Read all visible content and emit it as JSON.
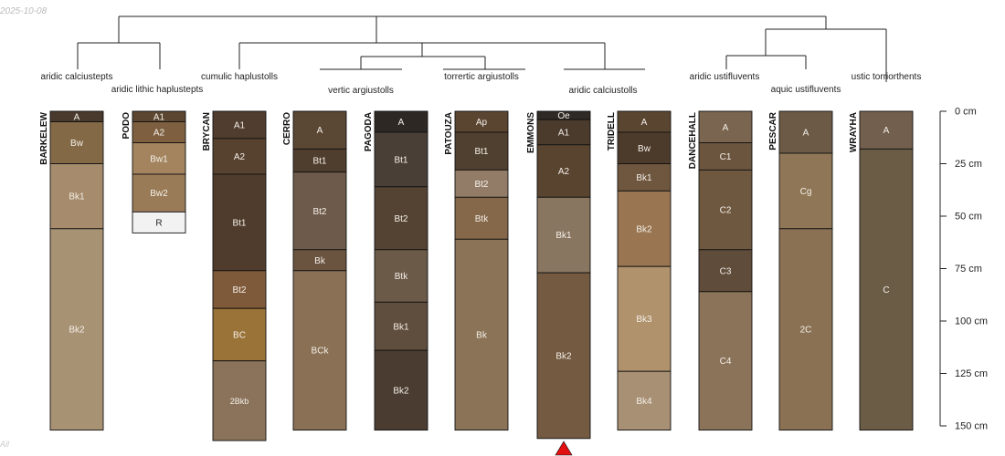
{
  "date_stamp": "2025-10-08",
  "corner_label": "All",
  "depth_axis": {
    "unit": "cm",
    "max_depth": 150,
    "ticks": [
      {
        "depth": 0,
        "label": "0 cm"
      },
      {
        "depth": 25,
        "label": "25 cm"
      },
      {
        "depth": 50,
        "label": "50 cm"
      },
      {
        "depth": 75,
        "label": "75 cm"
      },
      {
        "depth": 100,
        "label": "100 cm"
      },
      {
        "depth": 125,
        "label": "125 cm"
      },
      {
        "depth": 150,
        "label": "150 cm"
      }
    ]
  },
  "taxa_labels": [
    "aridic calciustepts",
    "aridic lithic haplustepts",
    "cumulic haplustolls",
    "vertic argiustolls",
    "torrertic argiustolls",
    "aridic calciustolls",
    "aridic ustifluvents",
    "aquic ustifluvents",
    "ustic torriorthents"
  ],
  "profiles": [
    {
      "name": "BARKELEW",
      "horizons": [
        {
          "name": "A",
          "top": 0,
          "bottom": 5,
          "color": "#4a3a2e"
        },
        {
          "name": "Bw",
          "top": 5,
          "bottom": 25,
          "color": "#846947"
        },
        {
          "name": "Bk1",
          "top": 25,
          "bottom": 56,
          "color": "#a68c6d"
        },
        {
          "name": "Bk2",
          "top": 56,
          "bottom": 152,
          "color": "#a89274"
        }
      ]
    },
    {
      "name": "PODO",
      "horizons": [
        {
          "name": "A1",
          "top": 0,
          "bottom": 5,
          "color": "#5c4631"
        },
        {
          "name": "A2",
          "top": 5,
          "bottom": 15,
          "color": "#7e6041"
        },
        {
          "name": "Bw1",
          "top": 15,
          "bottom": 30,
          "color": "#a3845e"
        },
        {
          "name": "Bw2",
          "top": 30,
          "bottom": 48,
          "color": "#9a7b58"
        },
        {
          "name": "R",
          "top": 48,
          "bottom": 58,
          "color": "#f2f2f2"
        }
      ]
    },
    {
      "name": "BRYCAN",
      "horizons": [
        {
          "name": "A1",
          "top": 0,
          "bottom": 13,
          "color": "#503d2f"
        },
        {
          "name": "A2",
          "top": 13,
          "bottom": 30,
          "color": "#57422f"
        },
        {
          "name": "Bt1",
          "top": 30,
          "bottom": 76,
          "color": "#4f3c2d"
        },
        {
          "name": "Bt2",
          "top": 76,
          "bottom": 94,
          "color": "#7f5a3a"
        },
        {
          "name": "BC",
          "top": 94,
          "bottom": 119,
          "color": "#9a7338"
        },
        {
          "name": "2Bkb",
          "top": 119,
          "bottom": 157,
          "color": "#8a735a"
        }
      ]
    },
    {
      "name": "CERRO",
      "horizons": [
        {
          "name": "A",
          "top": 0,
          "bottom": 18,
          "color": "#5a4734"
        },
        {
          "name": "Bt1",
          "top": 18,
          "bottom": 29,
          "color": "#4f3d2e"
        },
        {
          "name": "Bt2",
          "top": 29,
          "bottom": 66,
          "color": "#6e5a4a"
        },
        {
          "name": "Bk",
          "top": 66,
          "bottom": 76,
          "color": "#6a5440"
        },
        {
          "name": "BCk",
          "top": 76,
          "bottom": 152,
          "color": "#8a7156"
        }
      ]
    },
    {
      "name": "PAGODA",
      "horizons": [
        {
          "name": "A",
          "top": 0,
          "bottom": 10,
          "color": "#2e2824"
        },
        {
          "name": "Bt1",
          "top": 10,
          "bottom": 36,
          "color": "#4a3f36"
        },
        {
          "name": "Bt2",
          "top": 36,
          "bottom": 66,
          "color": "#544333"
        },
        {
          "name": "Btk",
          "top": 66,
          "bottom": 91,
          "color": "#6b5a48"
        },
        {
          "name": "Bk1",
          "top": 91,
          "bottom": 114,
          "color": "#5f4d3d"
        },
        {
          "name": "Bk2",
          "top": 114,
          "bottom": 152,
          "color": "#4a3c30"
        }
      ]
    },
    {
      "name": "PATOUZA",
      "horizons": [
        {
          "name": "Ap",
          "top": 0,
          "bottom": 10,
          "color": "#5a4531"
        },
        {
          "name": "Bt1",
          "top": 10,
          "bottom": 28,
          "color": "#50402f"
        },
        {
          "name": "Bt2",
          "top": 28,
          "bottom": 41,
          "color": "#937c67"
        },
        {
          "name": "Btk",
          "top": 41,
          "bottom": 61,
          "color": "#85684a"
        },
        {
          "name": "Bk",
          "top": 61,
          "bottom": 152,
          "color": "#8b7357"
        }
      ]
    },
    {
      "name": "EMMONS",
      "marker": true,
      "horizons": [
        {
          "name": "Oe",
          "top": 0,
          "bottom": 4,
          "color": "#2f2a25"
        },
        {
          "name": "A1",
          "top": 4,
          "bottom": 16,
          "color": "#4a3b2d"
        },
        {
          "name": "A2",
          "top": 16,
          "bottom": 41,
          "color": "#58442f"
        },
        {
          "name": "Bk1",
          "top": 41,
          "bottom": 77,
          "color": "#897661"
        },
        {
          "name": "Bk2",
          "top": 77,
          "bottom": 156,
          "color": "#735a41"
        }
      ]
    },
    {
      "name": "TRIDELL",
      "horizons": [
        {
          "name": "A",
          "top": 0,
          "bottom": 10,
          "color": "#5a4531"
        },
        {
          "name": "Bw",
          "top": 10,
          "bottom": 25,
          "color": "#4c3b2b"
        },
        {
          "name": "Bk1",
          "top": 25,
          "bottom": 38,
          "color": "#6e563f"
        },
        {
          "name": "Bk2",
          "top": 38,
          "bottom": 74,
          "color": "#997552"
        },
        {
          "name": "Bk3",
          "top": 74,
          "bottom": 124,
          "color": "#b0926c"
        },
        {
          "name": "Bk4",
          "top": 124,
          "bottom": 152,
          "color": "#a89074"
        }
      ]
    },
    {
      "name": "DANCEHALL",
      "horizons": [
        {
          "name": "A",
          "top": 0,
          "bottom": 15,
          "color": "#7a6650"
        },
        {
          "name": "C1",
          "top": 15,
          "bottom": 28,
          "color": "#6c553f"
        },
        {
          "name": "C2",
          "top": 28,
          "bottom": 66,
          "color": "#6f5840"
        },
        {
          "name": "C3",
          "top": 66,
          "bottom": 86,
          "color": "#5f4c3b"
        },
        {
          "name": "C4",
          "top": 86,
          "bottom": 152,
          "color": "#8a7358"
        }
      ]
    },
    {
      "name": "PESCAR",
      "horizons": [
        {
          "name": "A",
          "top": 0,
          "bottom": 20,
          "color": "#6c5a47"
        },
        {
          "name": "Cg",
          "top": 20,
          "bottom": 56,
          "color": "#8f7656"
        },
        {
          "name": "2C",
          "top": 56,
          "bottom": 152,
          "color": "#8b7154"
        }
      ]
    },
    {
      "name": "WRAYHA",
      "horizons": [
        {
          "name": "A",
          "top": 0,
          "bottom": 18,
          "color": "#725f4e"
        },
        {
          "name": "C",
          "top": 18,
          "bottom": 152,
          "color": "#6b5c45"
        }
      ]
    }
  ]
}
